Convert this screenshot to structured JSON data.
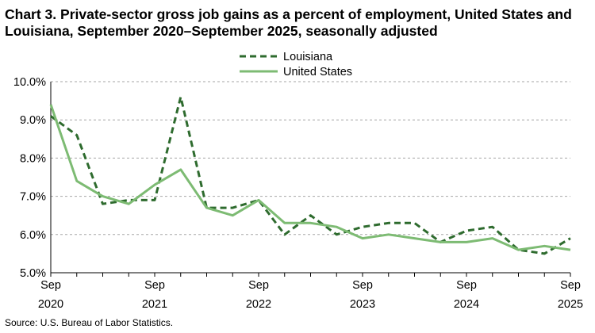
{
  "chart_data": {
    "type": "line",
    "title": "Chart 3. Private-sector gross job gains as a percent of employment, United States and Louisiana, September 2020–September 2025, seasonally adjusted",
    "source": "Source: U.S. Bureau of Labor Statistics.",
    "x": [
      "Sep 2020",
      "Dec 2020",
      "Mar 2021",
      "Jun 2021",
      "Sep 2021",
      "Dec 2021",
      "Mar 2022",
      "Jun 2022",
      "Sep 2022",
      "Dec 2022",
      "Mar 2023",
      "Jun 2023",
      "Sep 2023",
      "Dec 2023",
      "Mar 2024",
      "Jun 2024",
      "Sep 2024",
      "Dec 2024",
      "Mar 2025",
      "Jun 2025",
      "Sep 2025"
    ],
    "x_ticks": [
      {
        "top": "Sep",
        "bottom": "2020"
      },
      {
        "top": "Sep",
        "bottom": "2021"
      },
      {
        "top": "Sep",
        "bottom": "2022"
      },
      {
        "top": "Sep",
        "bottom": "2023"
      },
      {
        "top": "Sep",
        "bottom": "2024"
      },
      {
        "top": "Sep",
        "bottom": "2025"
      }
    ],
    "y_ticks": [
      "5.0%",
      "6.0%",
      "7.0%",
      "8.0%",
      "9.0%",
      "10.0%"
    ],
    "ylim": [
      5.0,
      10.0
    ],
    "grid": "horizontal dashed",
    "legend_position": "top-center",
    "series": [
      {
        "name": "Louisiana",
        "style": "dashed",
        "color": "#2e6b2e",
        "values": [
          9.1,
          8.6,
          6.8,
          6.9,
          6.9,
          9.6,
          6.7,
          6.7,
          6.9,
          6.0,
          6.5,
          6.0,
          6.2,
          6.3,
          6.3,
          5.8,
          6.1,
          6.2,
          5.6,
          5.5,
          5.9
        ]
      },
      {
        "name": "United States",
        "style": "solid",
        "color": "#7dbb73",
        "values": [
          9.4,
          7.4,
          7.0,
          6.8,
          7.3,
          7.7,
          6.7,
          6.5,
          6.9,
          6.3,
          6.3,
          6.2,
          5.9,
          6.0,
          5.9,
          5.8,
          5.8,
          5.9,
          5.6,
          5.7,
          5.6
        ]
      }
    ]
  }
}
